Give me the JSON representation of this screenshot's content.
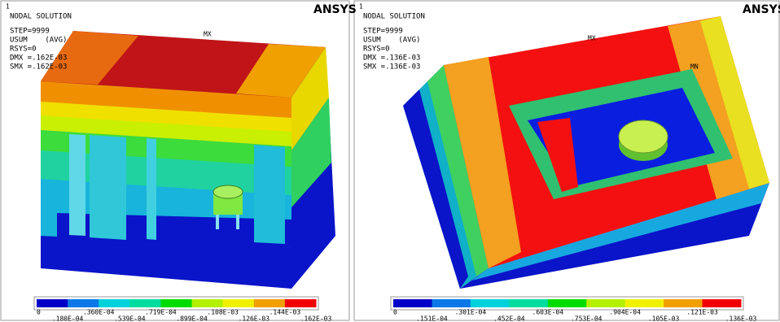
{
  "panels": [
    {
      "id": "1",
      "title": "NODAL SOLUTION",
      "info": [
        "STEP=9999",
        "USUM    (AVG)",
        "RSYS=0",
        "DMX =.162E-03",
        "SMX =.162E-03"
      ],
      "logo": "ANSYS",
      "markers": [
        "MX"
      ],
      "legend": [
        "0",
        ".180E-04",
        ".360E-04",
        ".539E-04",
        ".719E-04",
        ".899E-04",
        ".108E-03",
        ".126E-03",
        ".144E-03",
        ".162E-03"
      ]
    },
    {
      "id": "1",
      "title": "NODAL SOLUTION",
      "info": [
        "STEP=9999",
        "USUM    (AVG)",
        "RSYS=0",
        "DMX =.136E-03",
        "SMX =.136E-03"
      ],
      "logo": "ANSYS",
      "markers": [
        "MX",
        "MN"
      ],
      "legend": [
        "0",
        ".151E-04",
        ".301E-04",
        ".452E-04",
        ".603E-04",
        ".753E-04",
        ".904E-04",
        ".105E-03",
        ".121E-03",
        ".136E-03"
      ]
    }
  ]
}
